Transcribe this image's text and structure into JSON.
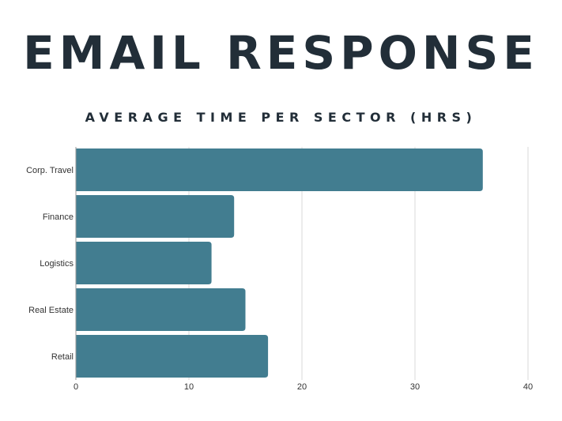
{
  "title": "EMAIL RESPONSE",
  "subtitle": "AVERAGE TIME PER SECTOR (HRS)",
  "colors": {
    "bar": "#427d90",
    "grid": "#d9d9d9",
    "title": "#222e38"
  },
  "chart_data": {
    "type": "bar",
    "orientation": "horizontal",
    "title": "EMAIL RESPONSE",
    "subtitle": "AVERAGE TIME PER SECTOR (HRS)",
    "categories": [
      "Corp. Travel",
      "Finance",
      "Logistics",
      "Real Estate",
      "Retail"
    ],
    "values": [
      36,
      14,
      12,
      15,
      17
    ],
    "xlim": [
      0,
      40
    ],
    "xticks": [
      0,
      10,
      20,
      30,
      40
    ],
    "grid": true,
    "legend": "none"
  }
}
